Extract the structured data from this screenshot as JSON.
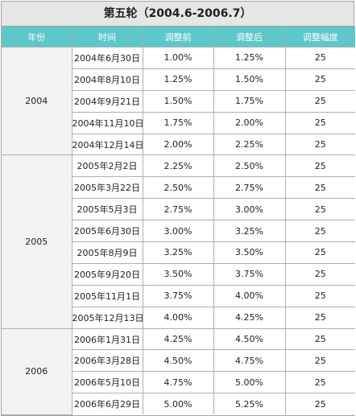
{
  "title": "第五轮（2004.6-2006.7）",
  "headers": [
    "年份",
    "时间",
    "调整前",
    "调整后",
    "调整幅度"
  ],
  "groups": [
    {
      "year": "2004",
      "rows": [
        {
          "date": "2004年6月30日",
          "before": "1.00%",
          "after": "1.25%",
          "change": "25"
        },
        {
          "date": "2004年8月10日",
          "before": "1.25%",
          "after": "1.50%",
          "change": "25"
        },
        {
          "date": "2004年9月21日",
          "before": "1.50%",
          "after": "1.75%",
          "change": "25"
        },
        {
          "date": "2004年11月10日",
          "before": "1.75%",
          "after": "2.00%",
          "change": "25"
        },
        {
          "date": "2004年12月14日",
          "before": "2.00%",
          "after": "2.25%",
          "change": "25"
        }
      ]
    },
    {
      "year": "2005",
      "rows": [
        {
          "date": "2005年2月2日",
          "before": "2.25%",
          "after": "2.50%",
          "change": "25"
        },
        {
          "date": "2005年3月22日",
          "before": "2.50%",
          "after": "2.75%",
          "change": "25"
        },
        {
          "date": "2005年5月3日",
          "before": "2.75%",
          "after": "3.00%",
          "change": "25"
        },
        {
          "date": "2005年6月30日",
          "before": "3.00%",
          "after": "3.25%",
          "change": "25"
        },
        {
          "date": "2005年8月9日",
          "before": "3.25%",
          "after": "3.50%",
          "change": "25"
        },
        {
          "date": "2005年9月20日",
          "before": "3.50%",
          "after": "3.75%",
          "change": "25"
        },
        {
          "date": "2005年11月1日",
          "before": "3.75%",
          "after": "4.00%",
          "change": "25"
        },
        {
          "date": "2005年12月13日",
          "before": "4.00%",
          "after": "4.25%",
          "change": "25"
        }
      ]
    },
    {
      "year": "2006",
      "rows": [
        {
          "date": "2006年1月31日",
          "before": "4.25%",
          "after": "4.50%",
          "change": "25"
        },
        {
          "date": "2006年3月28日",
          "before": "4.50%",
          "after": "4.75%",
          "change": "25"
        },
        {
          "date": "2006年5月10日",
          "before": "4.75%",
          "after": "5.00%",
          "change": "25"
        },
        {
          "date": "2006年6月29日",
          "before": "5.00%",
          "after": "5.25%",
          "change": "25"
        }
      ]
    }
  ],
  "colors": {
    "header_bg": "#5ec7c9",
    "title_bg": "#e6e6e6",
    "year_cell_bg": "#f2f2f2",
    "grid_line": "#a8b2b2"
  }
}
